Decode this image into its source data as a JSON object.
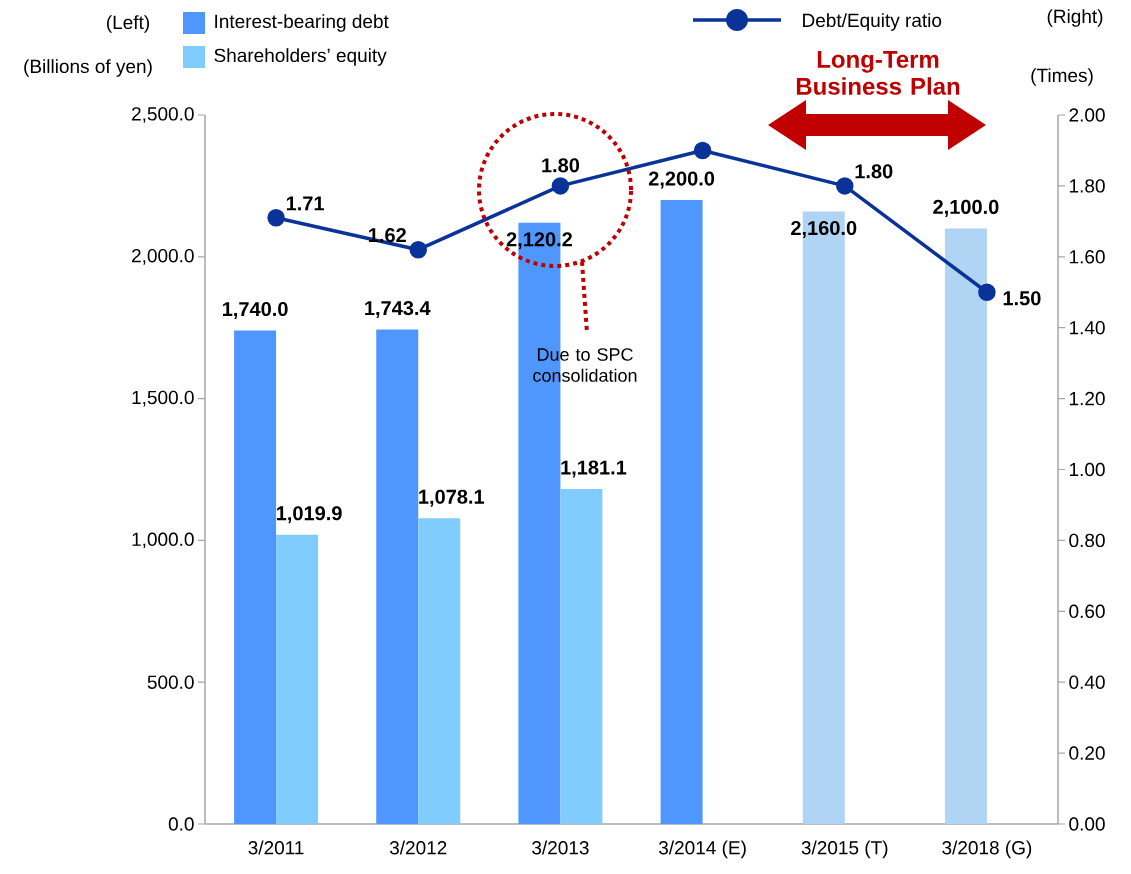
{
  "chart_data": {
    "type": "bar",
    "categories": [
      "3/2011",
      "3/2012",
      "3/2013",
      "3/2014 (E)",
      "3/2015 (T)",
      "3/2018 (G)"
    ],
    "ylabel": "(Billions of yen)",
    "y2label": "(Times)",
    "annotations": [
      "(Left)",
      "(Right)",
      "Due to SPC consolidation",
      "Long-Term Business Plan"
    ],
    "ylim": [
      0,
      2500
    ],
    "yticks": [
      {
        "value": 0,
        "label": "0.0"
      },
      {
        "value": 500,
        "label": "500.0"
      },
      {
        "value": 1000,
        "label": "1,000.0"
      },
      {
        "value": 1500,
        "label": "1,500.0"
      },
      {
        "value": 2000,
        "label": "2,000.0"
      },
      {
        "value": 2500,
        "label": "2,500.0"
      }
    ],
    "y2lim": [
      0,
      2
    ],
    "y2ticks": [
      {
        "value": 0,
        "label": "0.00"
      },
      {
        "value": 0.2,
        "label": "0.20"
      },
      {
        "value": 0.4,
        "label": "0.40"
      },
      {
        "value": 0.6,
        "label": "0.60"
      },
      {
        "value": 0.8,
        "label": "0.80"
      },
      {
        "value": 1,
        "label": "1.00"
      },
      {
        "value": 1.2,
        "label": "1.20"
      },
      {
        "value": 1.4,
        "label": "1.40"
      },
      {
        "value": 1.6,
        "label": "1.60"
      },
      {
        "value": 1.8,
        "label": "1.80"
      },
      {
        "value": 2,
        "label": "2.00"
      }
    ],
    "legend": "top",
    "marker": "circle",
    "grid": false,
    "series": [
      {
        "name": "Interest-bearing debt",
        "color": "#5096ff",
        "colors": [
          "#5096ff",
          "#5096ff",
          "#5096ff",
          "#5096ff",
          "#b0d4f4",
          "#b0d4f4"
        ],
        "values": [
          1740.0,
          1743.4,
          2120.2,
          2200.0,
          2160.0,
          2100.0
        ],
        "value_labels": [
          "1,740.0",
          "1,743.4",
          "2,120.2",
          "2,200.0",
          "2,160.0",
          "2,100.0"
        ]
      },
      {
        "name": "Shareholders’ equity",
        "color": "#80ccff",
        "values": [
          1019.9,
          1078.1,
          1181.1,
          null,
          null,
          null
        ],
        "value_labels": [
          "1,019.9",
          "1,078.1",
          "1,181.1",
          null,
          null,
          null
        ]
      },
      {
        "name": "Debt/Equity ratio",
        "type": "line",
        "axis": "y2",
        "color": "#0a3399",
        "values": [
          1.71,
          1.62,
          1.8,
          1.9,
          1.8,
          1.5
        ],
        "value_labels": [
          "1.71",
          "1.62",
          "1.80",
          null,
          "1.80",
          "1.50"
        ]
      }
    ]
  }
}
